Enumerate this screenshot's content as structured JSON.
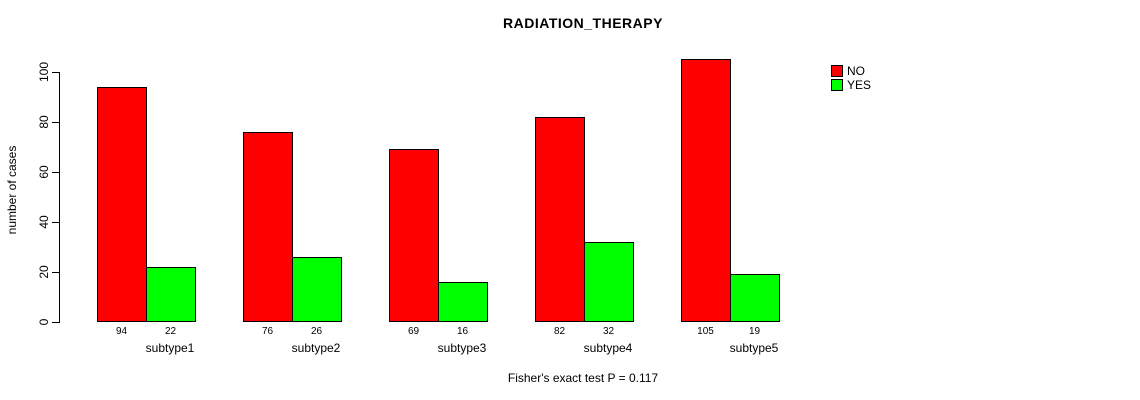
{
  "chart_data": {
    "type": "bar",
    "title": "RADIATION_THERAPY",
    "ylabel": "number of cases",
    "xlabel": "",
    "categories": [
      "subtype1",
      "subtype2",
      "subtype3",
      "subtype4",
      "subtype5"
    ],
    "series": [
      {
        "name": "NO",
        "color": "#ff0000",
        "values": [
          94,
          76,
          69,
          82,
          105
        ]
      },
      {
        "name": "YES",
        "color": "#00ff00",
        "values": [
          22,
          26,
          16,
          32,
          19
        ]
      }
    ],
    "bar_value_labels": [
      [
        "94",
        "22"
      ],
      [
        "76",
        "26"
      ],
      [
        "69",
        "16"
      ],
      [
        "82",
        "32"
      ],
      [
        "105",
        "19"
      ]
    ],
    "yticks": [
      0,
      20,
      40,
      60,
      80,
      100
    ],
    "ylim": [
      0,
      105
    ],
    "grid": false,
    "legend_position": "top-right",
    "legend_entries": [
      "NO",
      "YES"
    ],
    "caption": "Fisher's exact test P = 0.117"
  }
}
